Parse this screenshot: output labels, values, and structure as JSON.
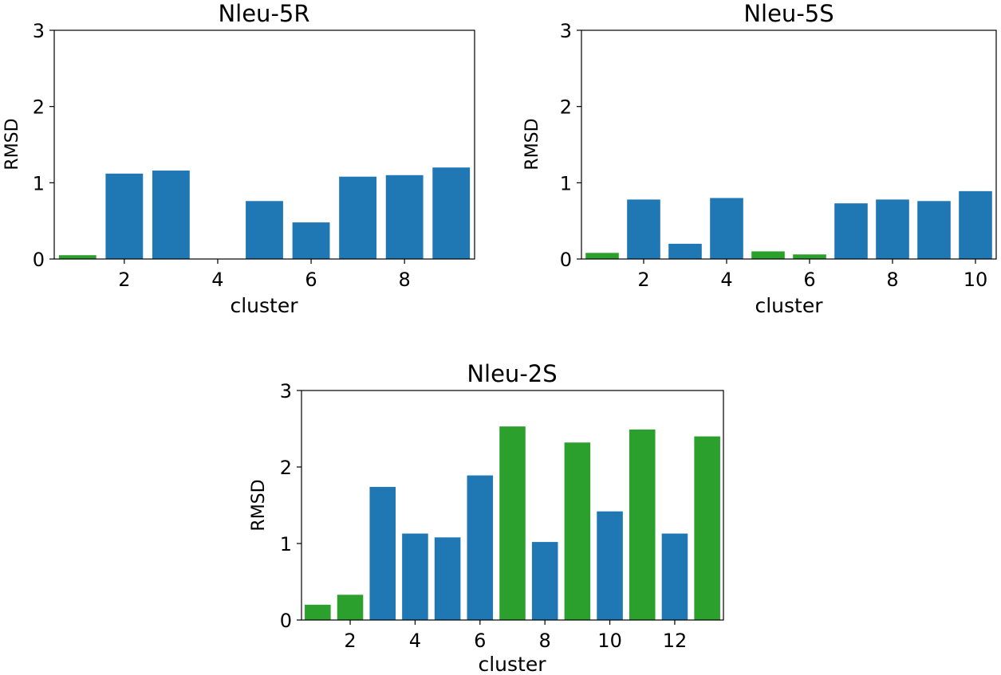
{
  "colors": {
    "blue": "#1f77b4",
    "green": "#2ca02c"
  },
  "chart_data": [
    {
      "type": "bar",
      "title": "Nleu-5R",
      "xlabel": "cluster",
      "ylabel": "RMSD",
      "ylim": [
        0,
        3
      ],
      "yticks": [
        "0",
        "1",
        "2",
        "3"
      ],
      "xticks": [
        2,
        4,
        6,
        8
      ],
      "xtick_labels": [
        "2",
        "4",
        "6",
        "8"
      ],
      "grid": false,
      "categories": [
        1,
        2,
        3,
        4,
        5,
        6,
        7,
        8,
        9
      ],
      "values": [
        0.05,
        1.12,
        1.16,
        0,
        0.76,
        0.48,
        1.08,
        1.1,
        1.2
      ],
      "bar_colors": [
        "green",
        "blue",
        "blue",
        "green",
        "blue",
        "blue",
        "blue",
        "blue",
        "blue"
      ]
    },
    {
      "type": "bar",
      "title": "Nleu-5S",
      "xlabel": "cluster",
      "ylabel": "RMSD",
      "ylim": [
        0,
        3
      ],
      "yticks": [
        "0",
        "1",
        "2",
        "3"
      ],
      "xticks": [
        2,
        4,
        6,
        8,
        10
      ],
      "xtick_labels": [
        "2",
        "4",
        "6",
        "8",
        "10"
      ],
      "grid": false,
      "categories": [
        1,
        2,
        3,
        4,
        5,
        6,
        7,
        8,
        9,
        10
      ],
      "values": [
        0.08,
        0.78,
        0.2,
        0.8,
        0.1,
        0.06,
        0.73,
        0.78,
        0.76,
        0.89
      ],
      "bar_colors": [
        "green",
        "blue",
        "blue",
        "blue",
        "green",
        "green",
        "blue",
        "blue",
        "blue",
        "blue"
      ]
    },
    {
      "type": "bar",
      "title": "Nleu-2S",
      "xlabel": "cluster",
      "ylabel": "RMSD",
      "ylim": [
        0,
        3
      ],
      "yticks": [
        "0",
        "1",
        "2",
        "3"
      ],
      "xticks": [
        2,
        4,
        6,
        8,
        10,
        12
      ],
      "xtick_labels": [
        "2",
        "4",
        "6",
        "8",
        "10",
        "12"
      ],
      "grid": false,
      "categories": [
        1,
        2,
        3,
        4,
        5,
        6,
        7,
        8,
        9,
        10,
        11,
        12,
        13
      ],
      "values": [
        0.2,
        0.33,
        1.74,
        1.13,
        1.08,
        1.89,
        2.53,
        1.02,
        2.32,
        1.42,
        2.49,
        1.13,
        2.4
      ],
      "bar_colors": [
        "green",
        "green",
        "blue",
        "blue",
        "blue",
        "blue",
        "green",
        "blue",
        "green",
        "blue",
        "green",
        "blue",
        "green"
      ]
    }
  ]
}
